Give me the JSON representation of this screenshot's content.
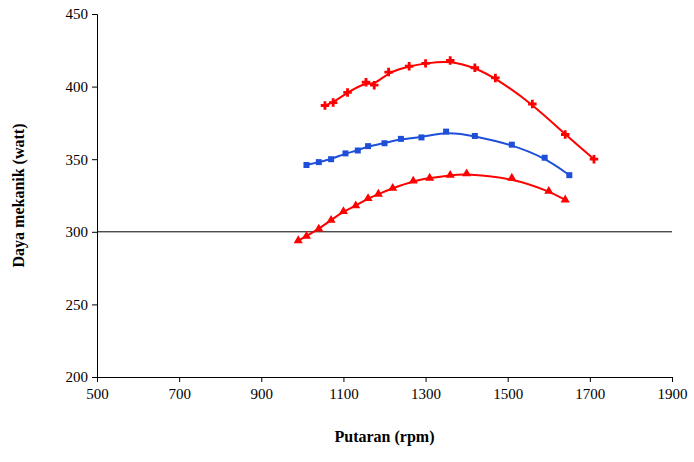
{
  "chart_data": {
    "type": "scatter",
    "x_label": "Putaran (rpm)",
    "y_label": "Daya mekanik (watt)",
    "xlim": [
      500,
      1900
    ],
    "xticks": [
      500,
      700,
      900,
      1100,
      1300,
      1500,
      1700,
      1900
    ],
    "ylim": [
      200,
      450
    ],
    "yticks": [
      200,
      250,
      300,
      350,
      400,
      450
    ],
    "hline": 300,
    "grid": false,
    "series": [
      {
        "color": "#ff0000",
        "marker": "cross",
        "line_style": "solid",
        "x": [
          1055,
          1075,
          1110,
          1155,
          1175,
          1210,
          1260,
          1300,
          1360,
          1420,
          1470,
          1560,
          1640,
          1710
        ],
        "values": [
          387,
          389,
          396,
          403,
          401,
          410,
          414,
          416,
          418,
          413,
          406,
          388,
          367,
          350
        ]
      },
      {
        "color": "#1f4fd8",
        "marker": "square",
        "line_style": "solid",
        "x": [
          1010,
          1040,
          1070,
          1105,
          1135,
          1160,
          1200,
          1240,
          1290,
          1350,
          1420,
          1510,
          1590,
          1650
        ],
        "values": [
          346,
          348,
          350,
          354,
          356,
          359,
          361,
          364,
          365,
          369,
          366,
          360,
          351,
          339
        ]
      },
      {
        "color": "#ff0000",
        "marker": "triangle",
        "line_style": "solid",
        "x": [
          990,
          1010,
          1040,
          1070,
          1100,
          1130,
          1160,
          1185,
          1220,
          1270,
          1310,
          1360,
          1400,
          1510,
          1600,
          1640
        ],
        "values": [
          294,
          297,
          302,
          308,
          314,
          318,
          323,
          326,
          330,
          335,
          337,
          339,
          340,
          337,
          328,
          322
        ]
      }
    ]
  }
}
